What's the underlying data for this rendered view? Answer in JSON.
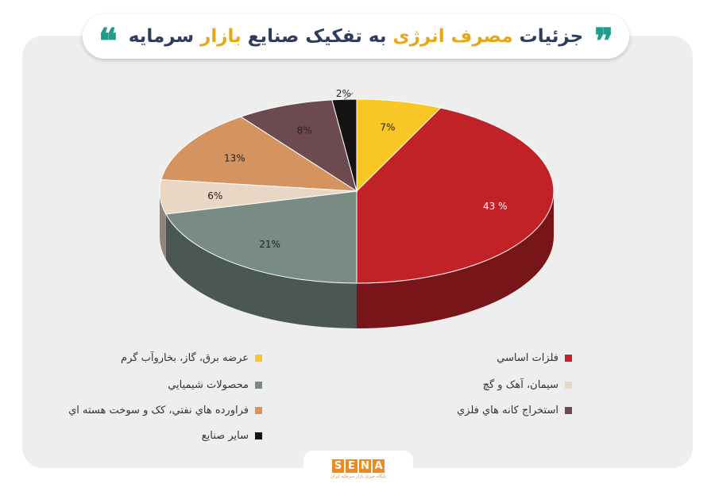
{
  "header": {
    "quote_open": "❞",
    "quote_close": "❝",
    "title_part1": "جزئیات ",
    "title_part2": "مصرف انرژی",
    "title_part3": " به تفکیک صنایع ",
    "title_part4": "بازار",
    "title_part5": " سرمایه"
  },
  "chart_data": {
    "type": "pie",
    "title": "جزئیات مصرف انرژی به تفکیک صنایع بازار سرمایه",
    "slices": [
      {
        "label": "عرضه برق، گاز، بخاروآب گرم",
        "value": 7,
        "display": "7%",
        "color": "#f8c625"
      },
      {
        "label": "فلزات اساسي",
        "value": 43,
        "display": "43 %",
        "color": "#c12228"
      },
      {
        "label": "محصولات شيميايي",
        "value": 21,
        "display": "21%",
        "color": "#788c84"
      },
      {
        "label": "سيمان، آهک و گچ",
        "value": 6,
        "display": "6%",
        "color": "#e9d6c4"
      },
      {
        "label": "فراورده هاي نفتي، کک و سوخت هسته اي",
        "value": 13,
        "display": "13%",
        "color": "#d4935f"
      },
      {
        "label": "استخراج کانه هاي فلزي",
        "value": 8,
        "display": "8%",
        "color": "#6c4a50"
      },
      {
        "label": "ساير صنايع",
        "value": 2,
        "display": "2%",
        "color": "#141414"
      }
    ],
    "legend_position": "bottom"
  },
  "legend": {
    "items": [
      {
        "label": "عرضه برق، گاز، بخاروآب گرم",
        "color": "#f8c625"
      },
      {
        "label": "فلزات اساسي",
        "color": "#c12228"
      },
      {
        "label": "محصولات شيميايي",
        "color": "#788c84"
      },
      {
        "label": "سيمان، آهک و گچ",
        "color": "#e9d6c4"
      },
      {
        "label": "فراورده هاي نفتي، کک و سوخت هسته اي",
        "color": "#d4935f"
      },
      {
        "label": "استخراج کانه هاي فلزي",
        "color": "#6c4a50"
      },
      {
        "label": "ساير صنايع",
        "color": "#141414"
      }
    ]
  },
  "footer": {
    "logo_letters": [
      "S",
      "E",
      "N",
      "A"
    ],
    "logo_tagline": "پایگاه خبری بازار سرمایه ایران"
  }
}
